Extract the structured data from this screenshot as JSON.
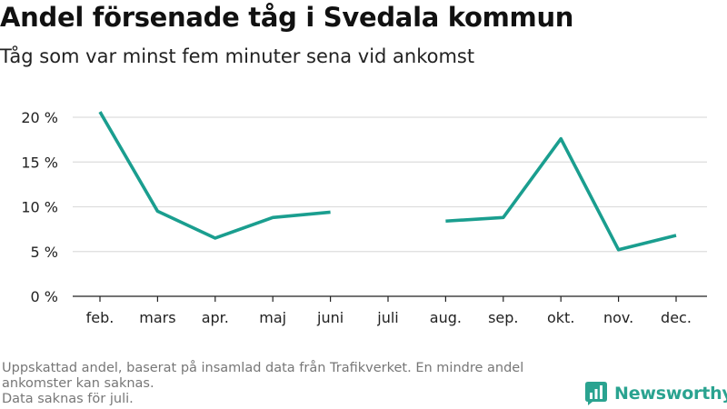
{
  "title": "Andel försenade tåg i Svedala kommun",
  "subtitle": "Tåg som var minst fem minuter sena vid ankomst",
  "footer": {
    "line1": "Uppskattad andel, baserat på insamlad data från Trafikverket. En mindre andel ankomster kan saknas.",
    "line2": "Data saknas för juli."
  },
  "brand": {
    "name": "Newsworthy",
    "icon": "newsworthy-logo-icon"
  },
  "colors": {
    "line": "#1a9e8f",
    "grid": "#dddddd",
    "axis": "#222222",
    "brand": "#2aa390"
  },
  "chart_data": {
    "type": "line",
    "categories": [
      "feb.",
      "mars",
      "apr.",
      "maj",
      "juni",
      "juli",
      "aug.",
      "sep.",
      "okt.",
      "nov.",
      "dec."
    ],
    "series": [
      {
        "values": [
          20.6,
          9.5,
          6.5,
          8.8,
          9.4,
          null,
          8.4,
          8.8,
          17.6,
          5.2,
          6.8
        ]
      }
    ],
    "ylim": [
      0,
      20
    ],
    "yticks": [
      0,
      5,
      10,
      15,
      20
    ],
    "ytick_labels": [
      "0 %",
      "5 %",
      "10 %",
      "15 %",
      "20 %"
    ],
    "grid": true,
    "xlabel": "",
    "ylabel": ""
  }
}
